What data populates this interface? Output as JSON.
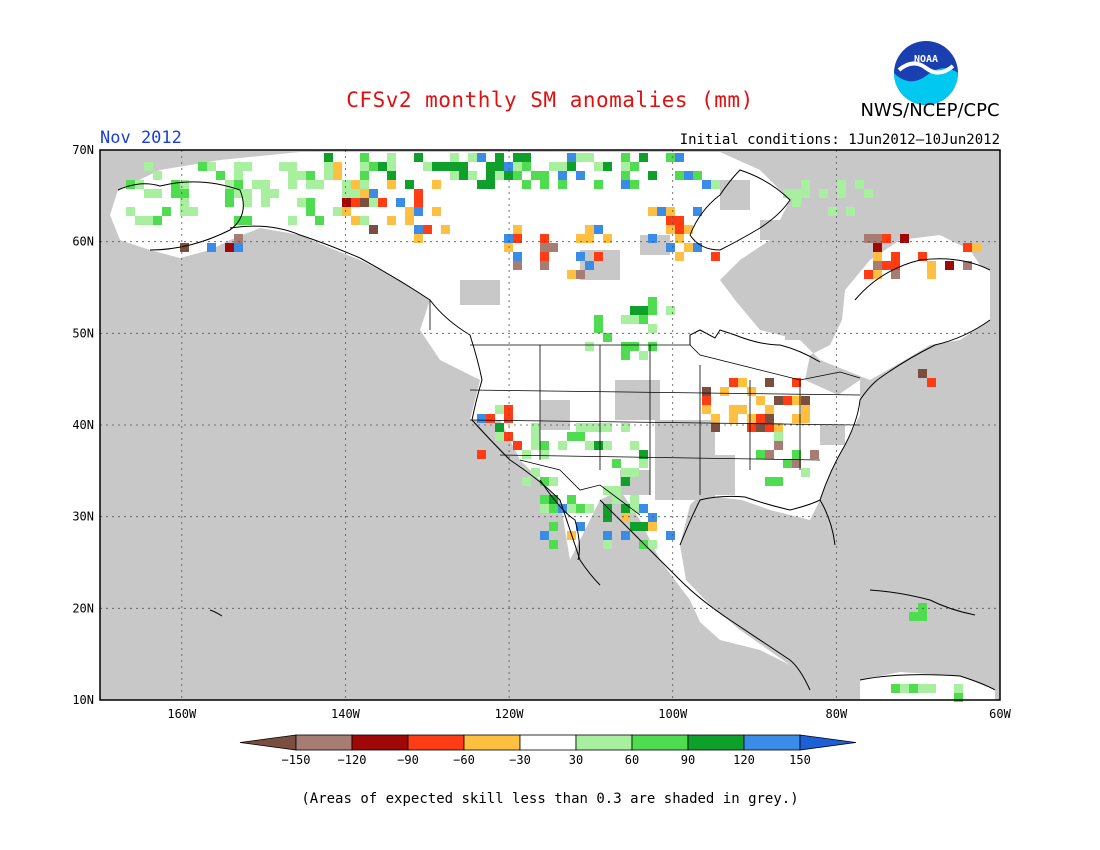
{
  "title": "CFSv2 monthly SM anomalies (mm)",
  "agency": "NWS/NCEP/CPC",
  "logo_text": "NOAA",
  "month": "Nov 2012",
  "initial_conditions": "Initial conditions: 1Jun2012–10Jun2012",
  "footnote": "(Areas of expected skill less than 0.3 are shaded in grey.)",
  "map": {
    "lat_labels": [
      "70N",
      "60N",
      "50N",
      "40N",
      "30N",
      "20N",
      "10N"
    ],
    "lon_labels": [
      "160W",
      "140W",
      "120W",
      "100W",
      "80W",
      "60W"
    ],
    "grey_color": "#c8c8c8"
  },
  "legend": {
    "colors": [
      "#7a4f3f",
      "#a67c73",
      "#a00808",
      "#ff3c14",
      "#ffbf40",
      "#ffffff",
      "#a8f0a0",
      "#50dc50",
      "#0ea02a",
      "#3a8ce6",
      "#1c5fd6"
    ],
    "labels": [
      "−150",
      "−120",
      "−90",
      "−60",
      "−30",
      "30",
      "60",
      "90",
      "120",
      "150"
    ]
  }
}
